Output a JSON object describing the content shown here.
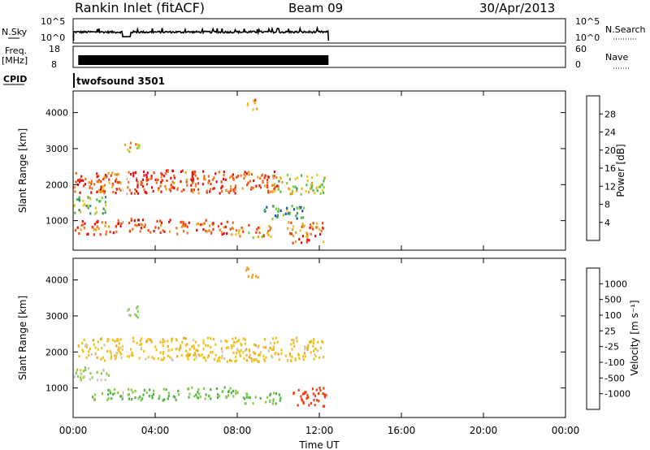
{
  "header": {
    "station": "Rankin Inlet (fitACF)",
    "beam": "Beam 09",
    "date": "30/Apr/2013"
  },
  "panels": {
    "nsky": {
      "left_label": "N.Sky",
      "left_tick_top": "10^5",
      "left_tick_bottom": "10^0",
      "right_tick_top": "10^5",
      "right_tick_bottom": "10^0",
      "right_label": "N.Search"
    },
    "freq": {
      "left_label_1": "Freq.",
      "left_label_2": "[MHz]",
      "left_tick_top": "18",
      "left_tick_bottom": "8",
      "right_tick_top": "60",
      "right_tick_bottom": "0",
      "right_label": "Nave"
    },
    "cpid": {
      "label": "CPID",
      "value": "twofsound 3501"
    }
  },
  "power_panel": {
    "ylabel": "Slant Range [km]",
    "yticks": [
      "1000",
      "2000",
      "3000",
      "4000"
    ],
    "colorbar_label": "Power [dB]",
    "colorbar_ticks": [
      "4",
      "8",
      "12",
      "16",
      "20",
      "24",
      "28"
    ],
    "colorbar_colors": [
      "#1010e0",
      "#1e50a8",
      "#3e9070",
      "#4cb84c",
      "#7ed23a",
      "#e8c820",
      "#f0a020",
      "#f07020",
      "#f04010",
      "#e01010"
    ]
  },
  "velocity_panel": {
    "ylabel": "Slant Range [km]",
    "yticks": [
      "1000",
      "2000",
      "3000",
      "4000"
    ],
    "colorbar_label": "Velocity [m s⁻¹]",
    "colorbar_ticks": [
      "1000",
      "500",
      "100",
      "25",
      "-25",
      "-100",
      "-500",
      "-1000"
    ],
    "colorbar_colors": [
      "#1a40b0",
      "#2e6aa0",
      "#3a8a5c",
      "#52b048",
      "#86cc48",
      "#c8c8c0",
      "#f0c020",
      "#f0a020",
      "#f07020",
      "#f04010",
      "#e02010"
    ]
  },
  "xaxis": {
    "label": "Time UT",
    "ticks": [
      "00:00",
      "04:00",
      "08:00",
      "12:00",
      "16:00",
      "20:00",
      "00:00"
    ]
  },
  "chart_data": {
    "type": "heatmap",
    "title": "Rankin Inlet (fitACF)",
    "subtitle": "Beam 09",
    "date": "30/Apr/2013",
    "xlabel": "Time UT",
    "ylabel": "Slant Range [km]",
    "xlim_hours": [
      0,
      24
    ],
    "ylim_km": [
      180,
      4600
    ],
    "data_end_hour": 12.45,
    "nsky_log": 2.2,
    "freq_mhz": 10.5,
    "power_blobs": [
      {
        "t": 0.8,
        "r": 2050,
        "dt": 0.9,
        "dr": 300,
        "level": 26
      },
      {
        "t": 1.8,
        "r": 2050,
        "dt": 0.6,
        "dr": 280,
        "level": 22
      },
      {
        "t": 3.2,
        "r": 2050,
        "dt": 1.2,
        "dr": 320,
        "level": 27
      },
      {
        "t": 5.0,
        "r": 2100,
        "dt": 1.0,
        "dr": 300,
        "level": 25
      },
      {
        "t": 6.8,
        "r": 2050,
        "dt": 1.1,
        "dr": 310,
        "level": 26
      },
      {
        "t": 8.8,
        "r": 2050,
        "dt": 1.2,
        "dr": 300,
        "level": 24
      },
      {
        "t": 11.0,
        "r": 2000,
        "dt": 1.3,
        "dr": 280,
        "level": 14
      },
      {
        "t": 1.0,
        "r": 800,
        "dt": 1.2,
        "dr": 200,
        "level": 24
      },
      {
        "t": 3.4,
        "r": 850,
        "dt": 1.3,
        "dr": 200,
        "level": 26
      },
      {
        "t": 6.4,
        "r": 800,
        "dt": 1.4,
        "dr": 200,
        "level": 24
      },
      {
        "t": 8.6,
        "r": 700,
        "dt": 1.0,
        "dr": 180,
        "level": 20
      },
      {
        "t": 11.3,
        "r": 650,
        "dt": 0.9,
        "dr": 300,
        "level": 23
      },
      {
        "t": 0.7,
        "r": 1400,
        "dt": 0.9,
        "dr": 250,
        "level": 12
      },
      {
        "t": 10.2,
        "r": 1200,
        "dt": 1.1,
        "dr": 200,
        "level": 10
      },
      {
        "t": 2.8,
        "r": 3000,
        "dt": 0.4,
        "dr": 150,
        "level": 18
      },
      {
        "t": 8.7,
        "r": 4200,
        "dt": 0.3,
        "dr": 150,
        "level": 20
      }
    ],
    "velocity_blobs": [
      {
        "t": 6.2,
        "r": 2050,
        "dt": 6.0,
        "dr": 330,
        "level": 0
      },
      {
        "t": 3.0,
        "r": 800,
        "dt": 2.2,
        "dr": 160,
        "level": 100
      },
      {
        "t": 7.0,
        "r": 850,
        "dt": 1.6,
        "dr": 160,
        "level": 100
      },
      {
        "t": 9.2,
        "r": 700,
        "dt": 0.9,
        "dr": 150,
        "level": 100
      },
      {
        "t": 11.5,
        "r": 750,
        "dt": 0.8,
        "dr": 280,
        "level": -300
      },
      {
        "t": 0.8,
        "r": 1400,
        "dt": 0.9,
        "dr": 200,
        "level": 50
      },
      {
        "t": 2.8,
        "r": 3100,
        "dt": 0.4,
        "dr": 150,
        "level": 60
      },
      {
        "t": 8.7,
        "r": 4200,
        "dt": 0.3,
        "dr": 150,
        "level": -80
      }
    ]
  }
}
